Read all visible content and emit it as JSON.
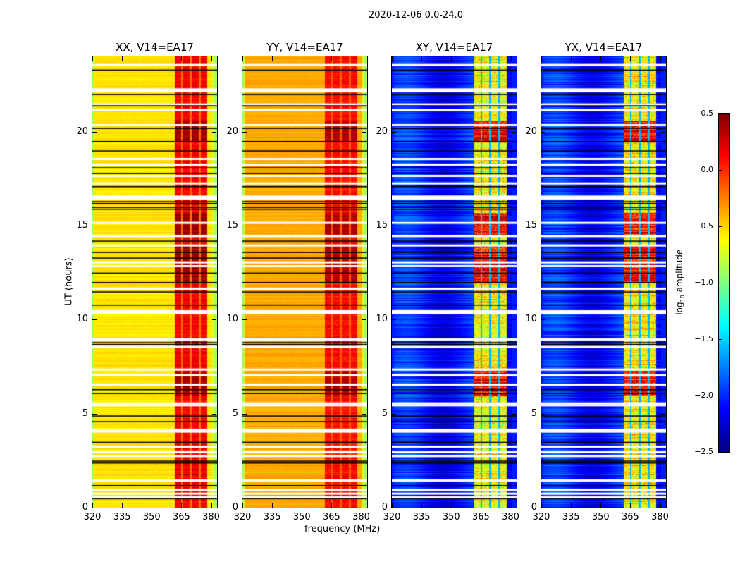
{
  "chart_data": {
    "type": "heatmap",
    "title": "2020-12-06 0.0-24.0",
    "xlabel": "frequency (MHz)",
    "ylabel": "UT (hours)",
    "xlim": [
      320,
      383
    ],
    "ylim": [
      0,
      24
    ],
    "xticks": [
      320,
      335,
      350,
      365,
      380
    ],
    "yticks": [
      0,
      5,
      10,
      15,
      20
    ],
    "colorbar": {
      "label_main": "log",
      "label_sub": "10",
      "label_rest": " amplitude",
      "colormap": "jet",
      "range": [
        -2.5,
        0.5
      ],
      "ticks": [
        "0.5",
        "0.0",
        "−0.5",
        "−1.0",
        "−1.5",
        "−2.0",
        "−2.5"
      ],
      "tick_values": [
        0.5,
        0.0,
        -0.5,
        -1.0,
        -1.5,
        -2.0,
        -2.5
      ]
    },
    "panels": [
      {
        "name": "XX",
        "title": "XX, V14=EA17",
        "baseline": -0.55,
        "band_level": 0.15,
        "band_dark_level": 0.4
      },
      {
        "name": "YY",
        "title": "YY, V14=EA17",
        "baseline": -0.38,
        "band_level": 0.1,
        "band_dark_level": 0.35
      },
      {
        "name": "XY",
        "title": "XY, V14=EA17",
        "baseline": -2.15,
        "band_level": -0.6,
        "band_dark_level": 0.1
      },
      {
        "name": "YX",
        "title": "YX, V14=EA17",
        "baseline": -2.15,
        "band_level": -0.6,
        "band_dark_level": 0.1
      }
    ],
    "rfi_subbands_mhz": [
      [
        361.5,
        364.5
      ],
      [
        365.5,
        369.0
      ],
      [
        370.0,
        373.5
      ],
      [
        374.5,
        378.0
      ]
    ],
    "band_edge_mhz": [
      [
        320,
        321
      ],
      [
        380.5,
        383
      ]
    ],
    "flagged_hours_white": [
      23.6,
      22.3,
      22.2,
      21.5,
      21.2,
      20.4,
      18.6,
      18.3,
      17.7,
      17.3,
      16.6,
      16.5,
      15.2,
      14.5,
      14.0,
      13.1,
      12.9,
      11.7,
      10.5,
      10.4,
      9.0,
      8.6,
      7.4,
      7.1,
      6.6,
      5.6,
      5.5,
      4.2,
      4.1,
      3.3,
      3.0,
      2.8,
      1.5,
      1.0,
      0.8,
      0.6
    ],
    "flagged_hours_black": [
      23.3,
      22.0,
      21.4,
      20.2,
      19.5,
      19.0,
      18.1,
      17.8,
      17.1,
      16.3,
      16.2,
      16.0,
      15.9,
      14.2,
      13.6,
      13.3,
      12.5,
      12.0,
      11.5,
      10.8,
      8.8,
      8.7,
      6.3,
      6.1,
      4.9,
      4.6,
      3.5,
      2.5,
      2.4,
      1.2,
      0.5
    ],
    "dark_time_ranges_hours": [
      [
        12.0,
        14.0
      ],
      [
        6.0,
        7.3
      ],
      [
        19.5,
        20.6
      ],
      [
        14.5,
        15.7
      ]
    ]
  }
}
